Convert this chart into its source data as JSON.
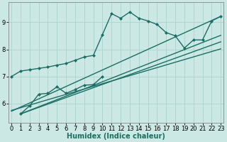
{
  "xlabel": "Humidex (Indice chaleur)",
  "background_color": "#cce8e4",
  "grid_color": "#aad4ce",
  "line_color": "#1a6e65",
  "x_values": [
    0,
    1,
    2,
    3,
    4,
    5,
    6,
    7,
    8,
    9,
    10,
    11,
    12,
    13,
    14,
    15,
    16,
    17,
    18,
    19,
    20,
    21,
    22,
    23
  ],
  "line1_y": [
    7.0,
    7.2,
    7.25,
    7.3,
    7.35,
    7.42,
    7.48,
    7.6,
    7.72,
    7.78,
    8.55,
    9.32,
    9.15,
    9.38,
    9.15,
    9.05,
    8.92,
    8.62,
    8.5,
    8.05,
    8.35,
    8.35,
    9.05,
    9.22
  ],
  "line2_x": [
    1,
    2,
    3,
    4,
    5,
    6,
    7,
    8,
    9,
    10
  ],
  "line2_y": [
    5.62,
    5.92,
    6.35,
    6.38,
    6.62,
    6.38,
    6.52,
    6.68,
    6.7,
    7.0
  ],
  "line3_x": [
    0,
    23
  ],
  "line3_y": [
    5.72,
    9.22
  ],
  "line4_x": [
    0,
    23
  ],
  "line4_y": [
    5.75,
    8.02
  ],
  "line5_x": [
    1,
    23
  ],
  "line5_y": [
    5.62,
    8.28
  ],
  "line6_x": [
    1,
    23
  ],
  "line6_y": [
    5.62,
    8.52
  ],
  "ylim": [
    5.3,
    9.75
  ],
  "xlim": [
    -0.3,
    23.3
  ],
  "yticks": [
    6,
    7,
    8,
    9
  ],
  "xticks": [
    0,
    1,
    2,
    3,
    4,
    5,
    6,
    7,
    8,
    9,
    10,
    11,
    12,
    13,
    14,
    15,
    16,
    17,
    18,
    19,
    20,
    21,
    22,
    23
  ],
  "markersize": 2.5,
  "linewidth": 1.0,
  "fontsize_label": 7,
  "fontsize_tick": 6
}
